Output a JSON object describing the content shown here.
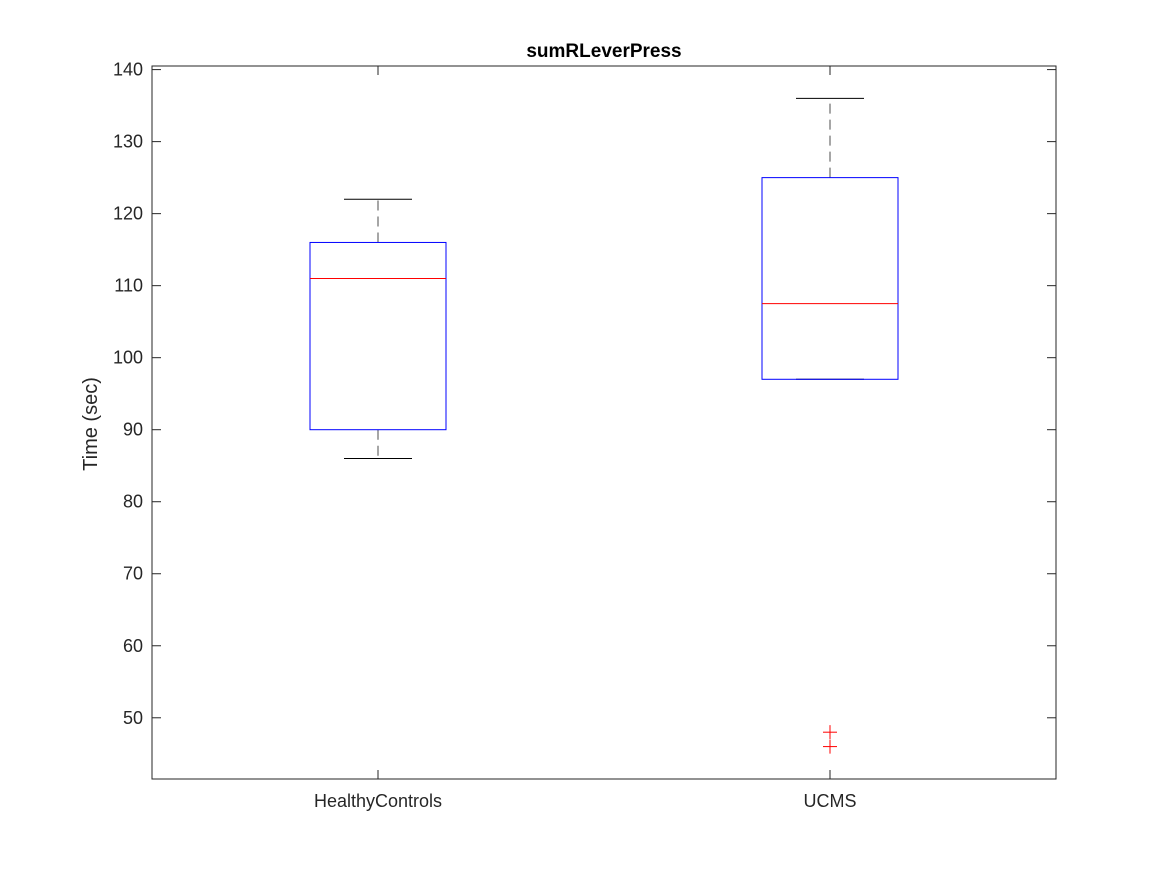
{
  "chart_data": {
    "type": "box",
    "title": "sumRLeverPress",
    "xlabel": "",
    "ylabel": "Time (sec)",
    "ylim": [
      41.5,
      140.5
    ],
    "yticks": [
      50,
      60,
      70,
      80,
      90,
      100,
      110,
      120,
      130,
      140
    ],
    "categories": [
      "HealthyControls",
      "UCMS"
    ],
    "boxes": [
      {
        "category": "HealthyControls",
        "whisker_low": 86,
        "q1": 90,
        "median": 111,
        "q3": 116,
        "whisker_high": 122,
        "outliers": []
      },
      {
        "category": "UCMS",
        "whisker_low": 97,
        "q1": 97,
        "median": 107.5,
        "q3": 125,
        "whisker_high": 136,
        "outliers": [
          46,
          48
        ]
      }
    ],
    "grid": false,
    "colors": {
      "box": "#0000ff",
      "median": "#ff0000",
      "whisker": "#000000",
      "outlier": "#ff0000",
      "axis": "#262626"
    }
  }
}
